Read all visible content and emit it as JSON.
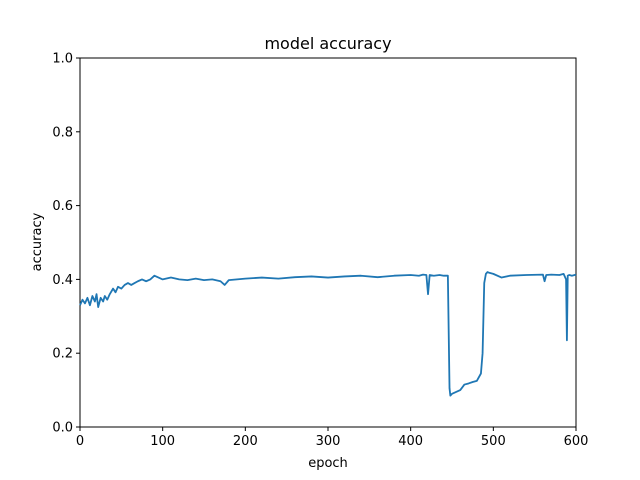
{
  "chart_data": {
    "type": "line",
    "title": "model accuracy",
    "xlabel": "epoch",
    "ylabel": "accuracy",
    "xlim": [
      0,
      600
    ],
    "ylim": [
      0.0,
      1.0
    ],
    "xticks": [
      0,
      100,
      200,
      300,
      400,
      500,
      600
    ],
    "yticks": [
      0.0,
      0.2,
      0.4,
      0.6,
      0.8,
      1.0
    ],
    "grid": false,
    "legend": "none",
    "colors": {
      "line": "#1f77b4",
      "axes": "#000000"
    },
    "series": [
      {
        "x": [
          0,
          3,
          6,
          9,
          12,
          15,
          18,
          20,
          22,
          25,
          28,
          30,
          33,
          36,
          40,
          43,
          46,
          50,
          54,
          58,
          62,
          66,
          70,
          75,
          80,
          85,
          90,
          95,
          100,
          110,
          120,
          130,
          140,
          150,
          160,
          170,
          175,
          180,
          190,
          200,
          220,
          240,
          260,
          280,
          300,
          320,
          340,
          360,
          380,
          400,
          410,
          415,
          419,
          421,
          423,
          428,
          435,
          440,
          445,
          447,
          448,
          450,
          455,
          460,
          465,
          470,
          475,
          480,
          485,
          487,
          489,
          491,
          493,
          495,
          500,
          510,
          520,
          540,
          560,
          562,
          564,
          570,
          580,
          585,
          588,
          589,
          590,
          592,
          595,
          600
        ],
        "y": [
          0.33,
          0.345,
          0.335,
          0.35,
          0.33,
          0.355,
          0.34,
          0.36,
          0.325,
          0.35,
          0.34,
          0.355,
          0.345,
          0.36,
          0.375,
          0.365,
          0.38,
          0.375,
          0.385,
          0.39,
          0.385,
          0.39,
          0.395,
          0.4,
          0.395,
          0.4,
          0.41,
          0.405,
          0.4,
          0.405,
          0.4,
          0.398,
          0.402,
          0.398,
          0.4,
          0.395,
          0.385,
          0.398,
          0.4,
          0.402,
          0.405,
          0.402,
          0.406,
          0.408,
          0.405,
          0.408,
          0.41,
          0.406,
          0.41,
          0.412,
          0.41,
          0.413,
          0.412,
          0.36,
          0.412,
          0.41,
          0.412,
          0.41,
          0.41,
          0.105,
          0.085,
          0.09,
          0.095,
          0.1,
          0.115,
          0.118,
          0.122,
          0.125,
          0.145,
          0.2,
          0.39,
          0.415,
          0.42,
          0.418,
          0.415,
          0.405,
          0.41,
          0.412,
          0.413,
          0.395,
          0.412,
          0.413,
          0.412,
          0.415,
          0.4,
          0.235,
          0.41,
          0.412,
          0.41,
          0.413
        ]
      }
    ]
  }
}
